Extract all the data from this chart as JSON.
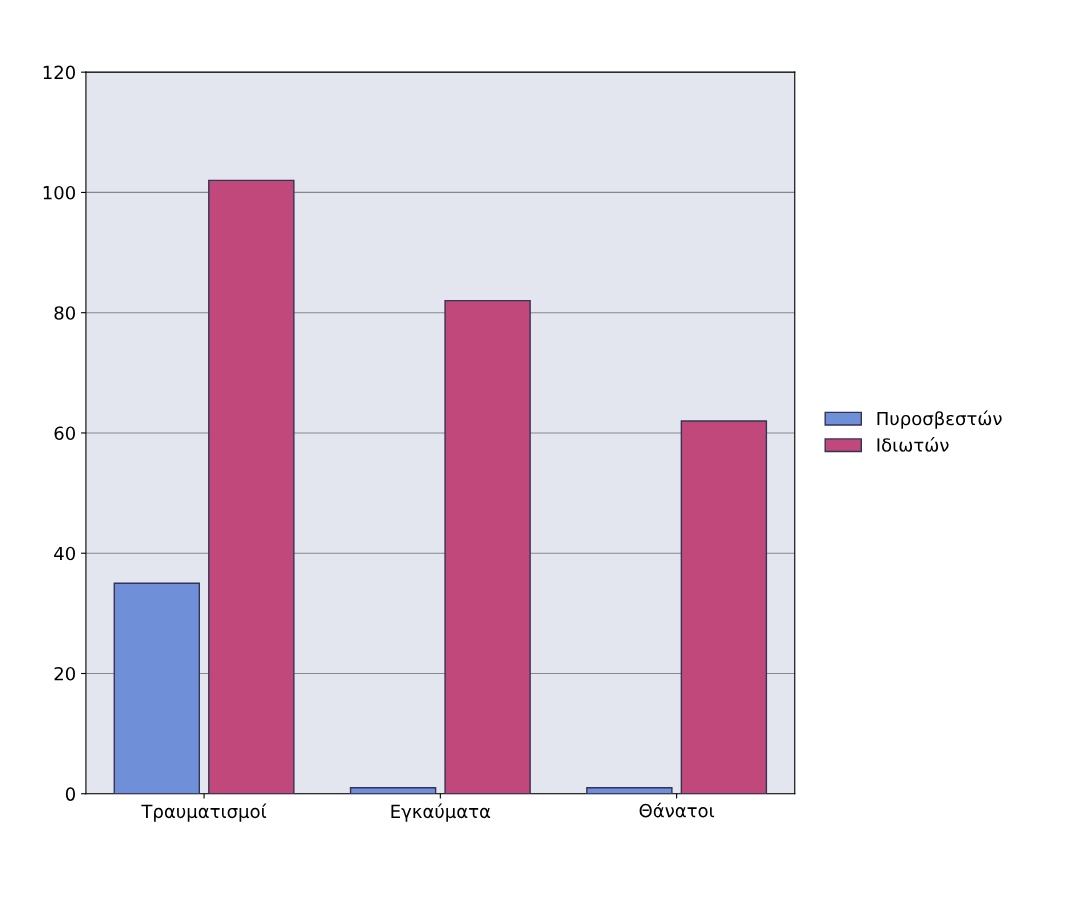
{
  "chart_data": {
    "type": "bar",
    "categories": [
      "Τραυματισμοί",
      "Εγκαύματα",
      "Θάνατοι"
    ],
    "series": [
      {
        "name": "Πυροσβεστών",
        "color": "#6f8fd8",
        "values": [
          35,
          1,
          1
        ]
      },
      {
        "name": "Ιδιωτών",
        "color": "#c0487a",
        "values": [
          102,
          82,
          62
        ]
      }
    ],
    "ylim": [
      0,
      120
    ],
    "yticks": [
      0,
      20,
      40,
      60,
      80,
      100,
      120
    ],
    "grid": "y",
    "legend": "right"
  }
}
